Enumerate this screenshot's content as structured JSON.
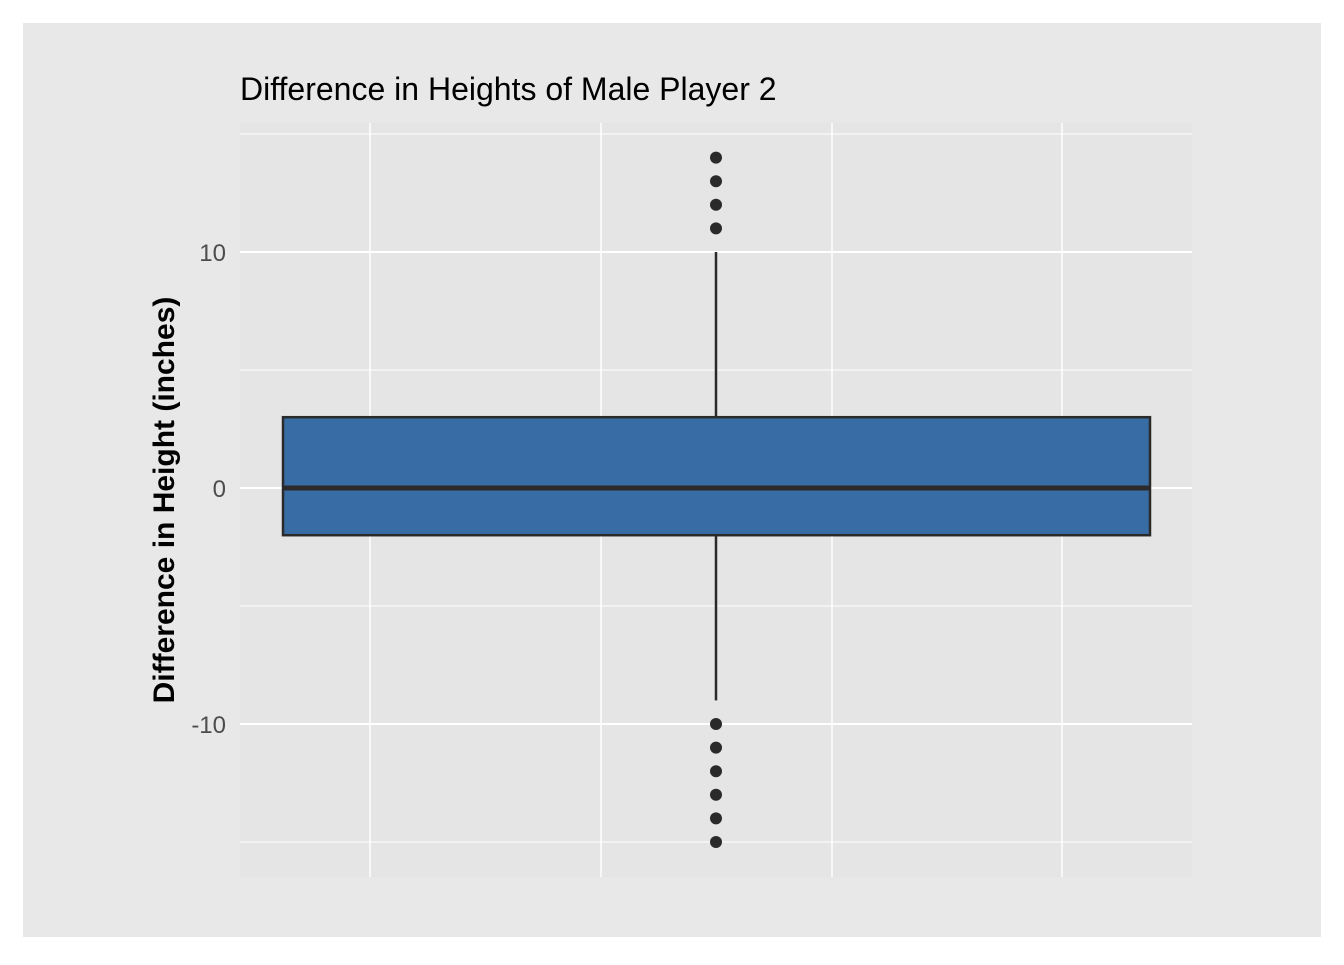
{
  "chart_data": {
    "type": "boxplot",
    "title": "Difference in Heights of Male Player 2",
    "xlabel": "",
    "ylabel": "Difference in Height (inches)",
    "ylim": [
      -15.4,
      16.5
    ],
    "yticks": [
      {
        "value": 10,
        "label": "10"
      },
      {
        "value": 0,
        "label": "0"
      },
      {
        "value": -10,
        "label": "-10"
      }
    ],
    "y_minor_gridlines": [
      15,
      5,
      -5,
      -15
    ],
    "x_gridlines": [
      0.3,
      0.55,
      0.8,
      1.05
    ],
    "grid": true,
    "box": {
      "min": -9,
      "q1": -2,
      "median": 0,
      "q3": 3,
      "max": 10,
      "outliers": [
        14,
        13,
        12,
        11,
        -10,
        -11,
        -12,
        -13,
        -14,
        -15
      ],
      "fill": "#386CA5",
      "line": "#2A2A2A"
    },
    "colors": {
      "outer_background": "#E8E8E8",
      "panel_background": "#E5E5E5",
      "gridline": "#FFFFFF",
      "outlier": "#2A2A2A"
    }
  }
}
